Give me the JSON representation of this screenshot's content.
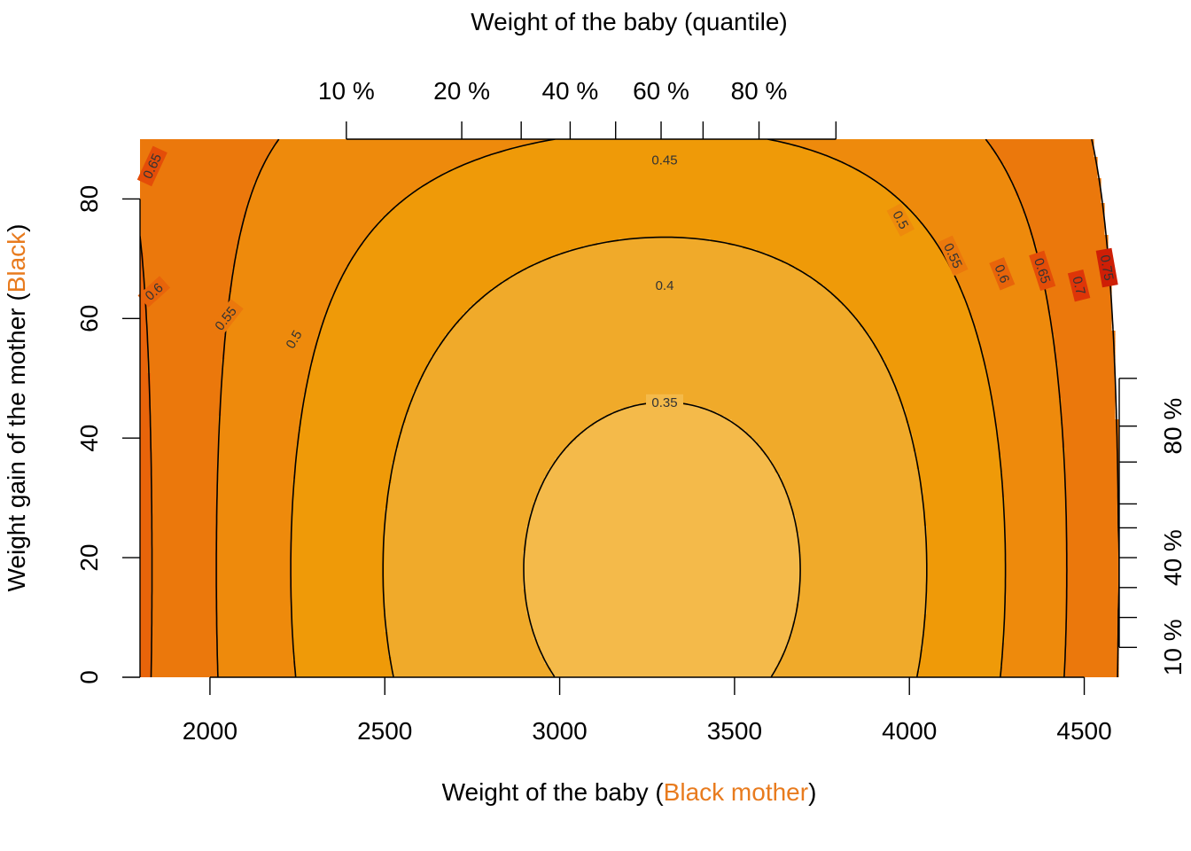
{
  "chart_data": {
    "type": "contour",
    "title": "",
    "xlabel": {
      "prefix": "Weight of the baby (",
      "highlight": "Black mother",
      "suffix": ")"
    },
    "ylabel": {
      "prefix": "Weight gain of the mother (",
      "highlight": "Black",
      "suffix": ")"
    },
    "top_axis_label": "Weight of the baby (quantile)",
    "highlight_color": "#E87B1E",
    "xlim": [
      1800,
      4600
    ],
    "ylim": [
      0,
      90
    ],
    "x_ticks": [
      2000,
      2500,
      3000,
      3500,
      4000,
      4500
    ],
    "y_ticks": [
      0,
      20,
      40,
      60,
      80
    ],
    "x_tick_labels": [
      "2000",
      "2500",
      "3000",
      "3500",
      "4000",
      "4500"
    ],
    "y_tick_labels": [
      "0",
      "20",
      "40",
      "60",
      "80"
    ],
    "top_quantile_ticks": [
      2390,
      2720,
      2890,
      3030,
      3160,
      3290,
      3410,
      3570,
      3790
    ],
    "top_quantile_labels": [
      {
        "label": "10 %",
        "x": 2390
      },
      {
        "label": "20 %",
        "x": 2720
      },
      {
        "label": "40 %",
        "x": 3030
      },
      {
        "label": "60 %",
        "x": 3290
      },
      {
        "label": "80 %",
        "x": 3570
      }
    ],
    "right_quantile_ticks": [
      5,
      10,
      15,
      20,
      25,
      29,
      36,
      42,
      50
    ],
    "right_quantile_labels": [
      {
        "label": "10 %",
        "y": 5
      },
      {
        "label": "40 %",
        "y": 20
      },
      {
        "label": "80 %",
        "y": 42
      }
    ],
    "contour_levels": [
      0.35,
      0.4,
      0.45,
      0.5,
      0.55,
      0.6,
      0.65,
      0.7,
      0.75
    ],
    "fill_colors": [
      "#F4BA4A",
      "#F0AA2A",
      "#EF9A08",
      "#EE8A0C",
      "#EB780C",
      "#E8640A",
      "#E44D08",
      "#DE3508",
      "#CE1F06",
      "#B41305"
    ],
    "contour_labels": [
      {
        "text": "0.35",
        "x": 3300,
        "y": 46,
        "angle": 0
      },
      {
        "text": "0.4",
        "x": 3300,
        "y": 65.5,
        "angle": 0
      },
      {
        "text": "0.45",
        "x": 3300,
        "y": 86.5,
        "angle": 0
      },
      {
        "text": "0.5",
        "x": 2240,
        "y": 56.5,
        "angle": -60
      },
      {
        "text": "0.5",
        "x": 3975,
        "y": 76.5,
        "angle": 62
      },
      {
        "text": "0.55",
        "x": 2045,
        "y": 60,
        "angle": -52
      },
      {
        "text": "0.55",
        "x": 4125,
        "y": 70.5,
        "angle": 65
      },
      {
        "text": "0.6",
        "x": 1840,
        "y": 64.5,
        "angle": -42
      },
      {
        "text": "0.6",
        "x": 4265,
        "y": 67.5,
        "angle": 68
      },
      {
        "text": "0.65",
        "x": 1835,
        "y": 85.5,
        "angle": -65
      },
      {
        "text": "0.65",
        "x": 4380,
        "y": 68,
        "angle": 72
      },
      {
        "text": "0.7",
        "x": 4485,
        "y": 65.5,
        "angle": 76
      },
      {
        "text": "0.75",
        "x": 4565,
        "y": 68.5,
        "angle": 80
      }
    ]
  }
}
